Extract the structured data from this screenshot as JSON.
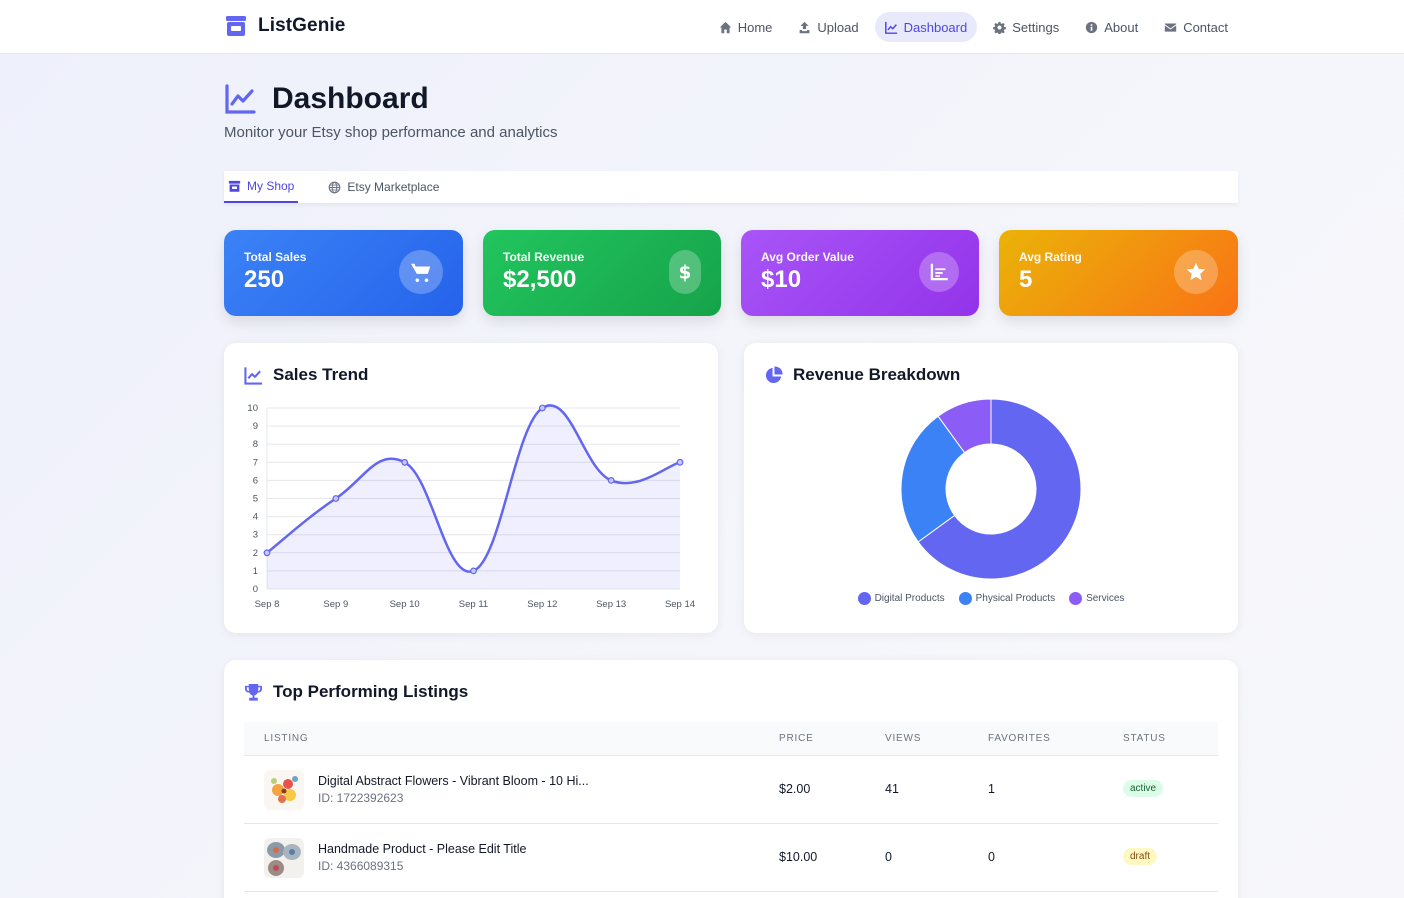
{
  "brand": {
    "name": "ListGenie"
  },
  "nav": [
    {
      "label": "Home",
      "icon": "home-icon"
    },
    {
      "label": "Upload",
      "icon": "upload-icon"
    },
    {
      "label": "Dashboard",
      "icon": "chart-line-icon",
      "active": true
    },
    {
      "label": "Settings",
      "icon": "gear-icon"
    },
    {
      "label": "About",
      "icon": "info-icon"
    },
    {
      "label": "Contact",
      "icon": "envelope-icon"
    }
  ],
  "header": {
    "title": "Dashboard",
    "subtitle": "Monitor your Etsy shop performance and analytics"
  },
  "tabs": [
    {
      "label": "My Shop",
      "icon": "store-icon",
      "active": true
    },
    {
      "label": "Etsy Marketplace",
      "icon": "globe-icon"
    }
  ],
  "stats": [
    {
      "label": "Total Sales",
      "value": "250",
      "icon": "cart-icon"
    },
    {
      "label": "Total Revenue",
      "value": "$2,500",
      "icon": "dollar-icon"
    },
    {
      "label": "Avg Order Value",
      "value": "$10",
      "icon": "bar-chart-icon"
    },
    {
      "label": "Avg Rating",
      "value": "5",
      "icon": "star-icon"
    }
  ],
  "sales_panel": {
    "title": "Sales Trend"
  },
  "revenue_panel": {
    "title": "Revenue Breakdown"
  },
  "colors": {
    "accent": "#6366f1",
    "physical": "#3b82f6",
    "services": "#8b5cf6"
  },
  "chart_data": [
    {
      "type": "line",
      "title": "Sales Trend",
      "x": [
        "Sep 8",
        "Sep 9",
        "Sep 10",
        "Sep 11",
        "Sep 12",
        "Sep 13",
        "Sep 14"
      ],
      "series": [
        {
          "values": [
            2,
            5,
            7,
            1,
            10,
            6,
            7
          ]
        }
      ],
      "ylim": [
        0,
        10
      ],
      "yticks": [
        0,
        1,
        2,
        3,
        4,
        5,
        6,
        7,
        8,
        9,
        10
      ],
      "grid": true,
      "fill": true
    },
    {
      "type": "pie",
      "title": "Revenue Breakdown",
      "donut": true,
      "labels": [
        "Digital Products",
        "Physical Products",
        "Services"
      ],
      "values": [
        65,
        25,
        10
      ],
      "legend": "bottom"
    }
  ],
  "top_listings": {
    "title": "Top Performing Listings",
    "columns": [
      "Listing",
      "Price",
      "Views",
      "Favorites",
      "Status"
    ],
    "rows": [
      {
        "name": "Digital Abstract Flowers - Vibrant Bloom - 10 Hi...",
        "id": "ID: 1722392623",
        "price": "$2.00",
        "views": "41",
        "favorites": "1",
        "status": "active"
      },
      {
        "name": "Handmade Product - Please Edit Title",
        "id": "ID: 4366089315",
        "price": "$10.00",
        "views": "0",
        "favorites": "0",
        "status": "draft"
      }
    ]
  }
}
